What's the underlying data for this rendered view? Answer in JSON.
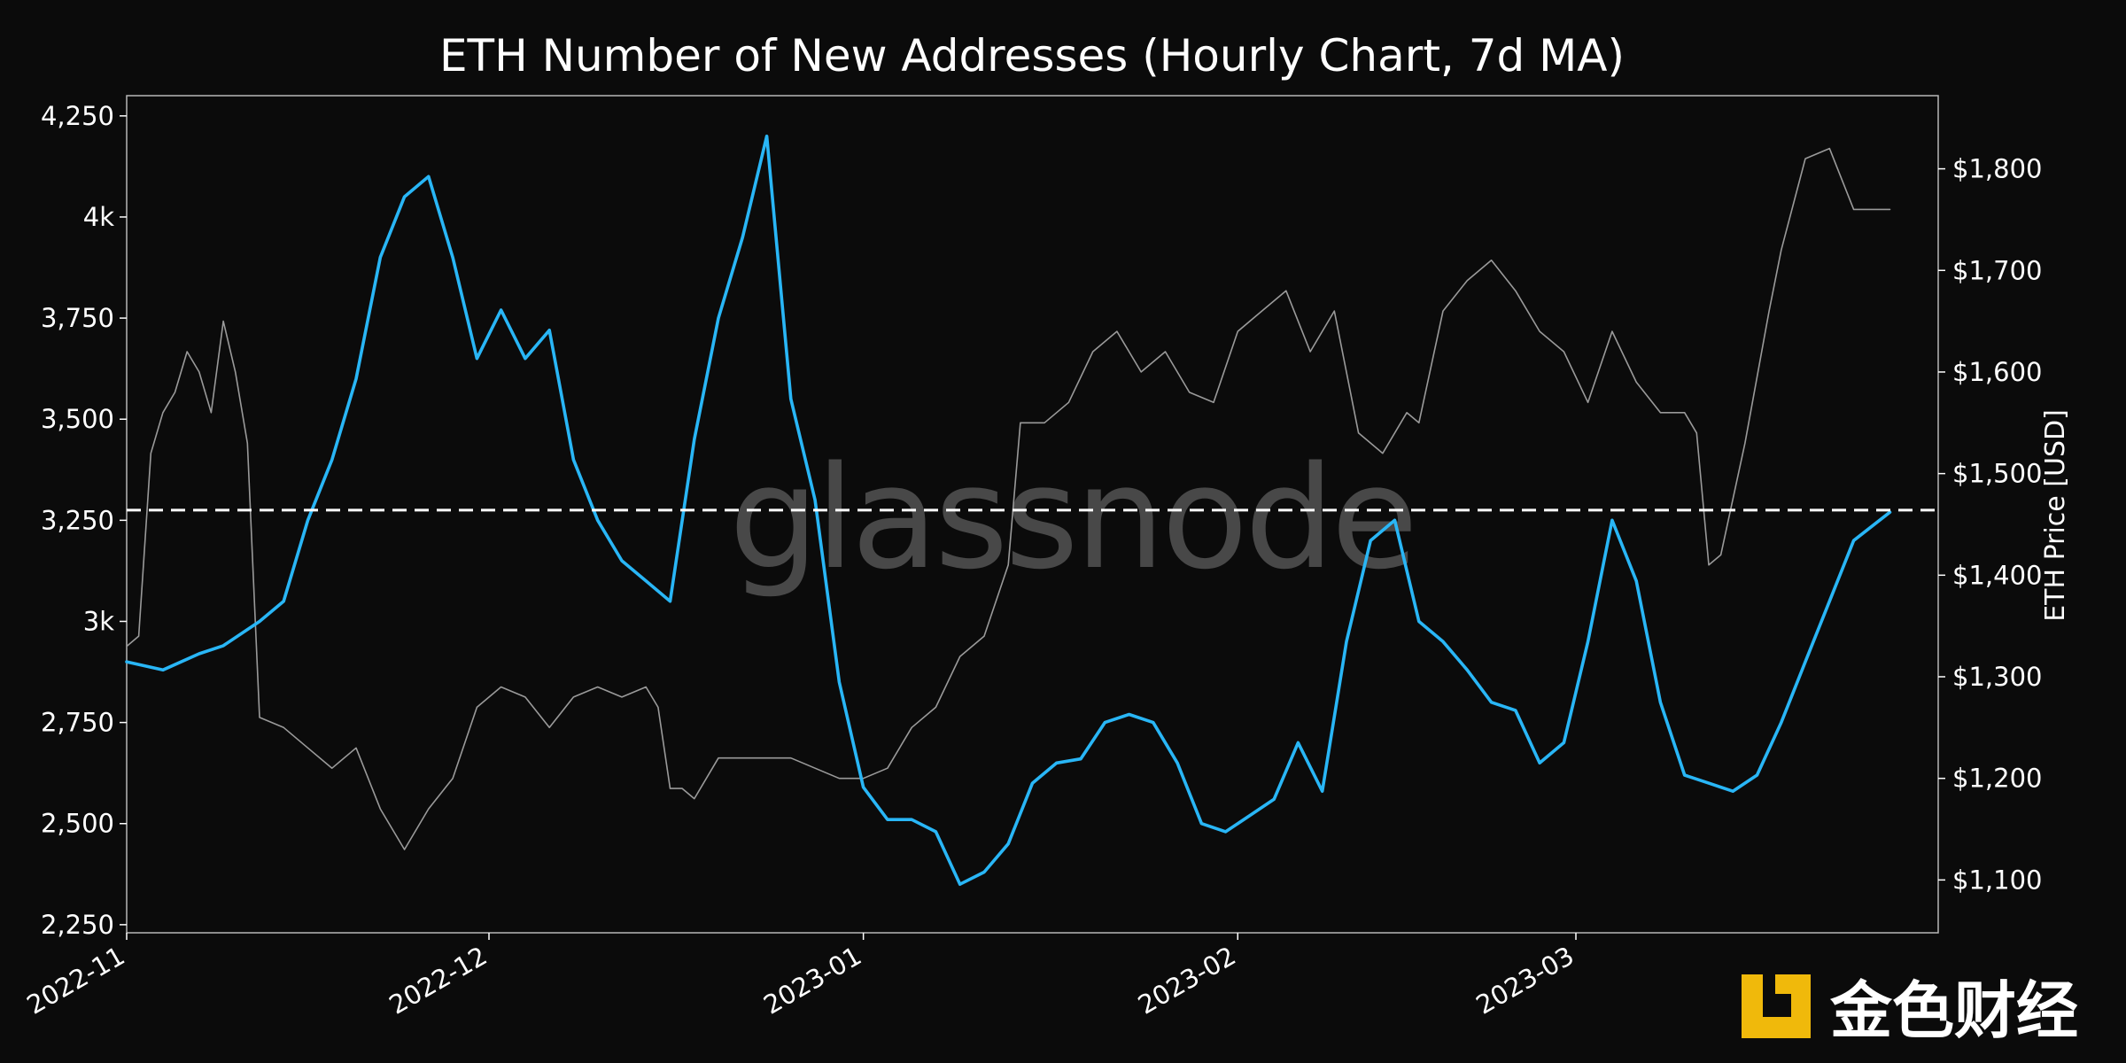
{
  "chart_data": {
    "type": "line",
    "title": "ETH Number of New Addresses (Hourly Chart, 7d MA)",
    "y_right_label": "ETH Price [USD]",
    "watermark": "glassnode",
    "brand": "金色财经",
    "x_ticks": [
      "2022-11",
      "2022-12",
      "2023-01",
      "2023-02",
      "2023-03"
    ],
    "y_left_ticks": [
      "2,250",
      "2,500",
      "2,750",
      "3k",
      "3,250",
      "3,500",
      "3,750",
      "4k",
      "4,250"
    ],
    "y_left_tick_values": [
      2250,
      2500,
      2750,
      3000,
      3250,
      3500,
      3750,
      4000,
      4250
    ],
    "y_right_ticks": [
      "$1,100",
      "$1,200",
      "$1,300",
      "$1,400",
      "$1,500",
      "$1,600",
      "$1,700",
      "$1,800"
    ],
    "y_right_tick_values": [
      1100,
      1200,
      1300,
      1400,
      1500,
      1600,
      1700,
      1800
    ],
    "ylim_left": [
      2230,
      4300
    ],
    "ylim_right": [
      1048,
      1872
    ],
    "xlim": [
      "2022-11-01",
      "2023-03-31"
    ],
    "reference_line": {
      "value": 3275,
      "axis": "left",
      "style": "dashed",
      "color": "#ffffff"
    },
    "series": [
      {
        "color": "#29b6f6",
        "axis": "left",
        "x": [
          "2022-11-01",
          "2022-11-04",
          "2022-11-07",
          "2022-11-09",
          "2022-11-12",
          "2022-11-14",
          "2022-11-16",
          "2022-11-18",
          "2022-11-20",
          "2022-11-22",
          "2022-11-24",
          "2022-11-26",
          "2022-11-28",
          "2022-11-30",
          "2022-12-02",
          "2022-12-04",
          "2022-12-06",
          "2022-12-08",
          "2022-12-10",
          "2022-12-12",
          "2022-12-14",
          "2022-12-16",
          "2022-12-18",
          "2022-12-20",
          "2022-12-22",
          "2022-12-24",
          "2022-12-26",
          "2022-12-28",
          "2022-12-30",
          "2023-01-01",
          "2023-01-03",
          "2023-01-05",
          "2023-01-07",
          "2023-01-09",
          "2023-01-11",
          "2023-01-13",
          "2023-01-15",
          "2023-01-17",
          "2023-01-19",
          "2023-01-21",
          "2023-01-23",
          "2023-01-25",
          "2023-01-27",
          "2023-01-29",
          "2023-01-31",
          "2023-02-02",
          "2023-02-04",
          "2023-02-06",
          "2023-02-08",
          "2023-02-10",
          "2023-02-12",
          "2023-02-14",
          "2023-02-16",
          "2023-02-18",
          "2023-02-20",
          "2023-02-22",
          "2023-02-24",
          "2023-02-26",
          "2023-02-28",
          "2023-03-02",
          "2023-03-04",
          "2023-03-06",
          "2023-03-08",
          "2023-03-10",
          "2023-03-12",
          "2023-03-14",
          "2023-03-16",
          "2023-03-18",
          "2023-03-20",
          "2023-03-22",
          "2023-03-24",
          "2023-03-27"
        ],
        "values": [
          2900,
          2880,
          2920,
          2940,
          3000,
          3050,
          3250,
          3400,
          3600,
          3900,
          4050,
          4100,
          3900,
          3650,
          3770,
          3650,
          3720,
          3400,
          3250,
          3150,
          3100,
          3050,
          3450,
          3750,
          3950,
          4200,
          3550,
          3300,
          2850,
          2590,
          2510,
          2510,
          2480,
          2350,
          2380,
          2450,
          2600,
          2650,
          2660,
          2750,
          2770,
          2750,
          2650,
          2500,
          2480,
          2520,
          2560,
          2700,
          2580,
          2950,
          3200,
          3250,
          3000,
          2950,
          2880,
          2800,
          2780,
          2650,
          2700,
          2950,
          3250,
          3100,
          2800,
          2620,
          2600,
          2580,
          2620,
          2750,
          2900,
          3050,
          3200,
          3270
        ]
      },
      {
        "color": "#9a9a9a",
        "axis": "right",
        "x": [
          "2022-11-01",
          "2022-11-02",
          "2022-11-03",
          "2022-11-04",
          "2022-11-05",
          "2022-11-06",
          "2022-11-07",
          "2022-11-08",
          "2022-11-09",
          "2022-11-10",
          "2022-11-11",
          "2022-11-12",
          "2022-11-14",
          "2022-11-16",
          "2022-11-18",
          "2022-11-20",
          "2022-11-22",
          "2022-11-24",
          "2022-11-26",
          "2022-11-28",
          "2022-11-30",
          "2022-12-02",
          "2022-12-04",
          "2022-12-06",
          "2022-12-08",
          "2022-12-10",
          "2022-12-12",
          "2022-12-14",
          "2022-12-15",
          "2022-12-16",
          "2022-12-17",
          "2022-12-18",
          "2022-12-20",
          "2022-12-22",
          "2022-12-24",
          "2022-12-26",
          "2022-12-28",
          "2022-12-30",
          "2023-01-01",
          "2023-01-03",
          "2023-01-05",
          "2023-01-07",
          "2023-01-09",
          "2023-01-11",
          "2023-01-13",
          "2023-01-14",
          "2023-01-16",
          "2023-01-18",
          "2023-01-20",
          "2023-01-22",
          "2023-01-24",
          "2023-01-26",
          "2023-01-28",
          "2023-01-30",
          "2023-02-01",
          "2023-02-03",
          "2023-02-05",
          "2023-02-07",
          "2023-02-09",
          "2023-02-11",
          "2023-02-13",
          "2023-02-15",
          "2023-02-16",
          "2023-02-18",
          "2023-02-20",
          "2023-02-22",
          "2023-02-24",
          "2023-02-26",
          "2023-02-28",
          "2023-03-02",
          "2023-03-04",
          "2023-03-06",
          "2023-03-08",
          "2023-03-10",
          "2023-03-11",
          "2023-03-12",
          "2023-03-13",
          "2023-03-15",
          "2023-03-17",
          "2023-03-18",
          "2023-03-20",
          "2023-03-22",
          "2023-03-24",
          "2023-03-27"
        ],
        "values": [
          1330,
          1340,
          1520,
          1560,
          1580,
          1620,
          1600,
          1560,
          1650,
          1600,
          1530,
          1260,
          1250,
          1230,
          1210,
          1230,
          1170,
          1130,
          1170,
          1200,
          1270,
          1290,
          1280,
          1250,
          1280,
          1290,
          1280,
          1290,
          1270,
          1190,
          1190,
          1180,
          1220,
          1220,
          1220,
          1220,
          1210,
          1200,
          1200,
          1210,
          1250,
          1270,
          1320,
          1340,
          1410,
          1550,
          1550,
          1570,
          1620,
          1640,
          1600,
          1620,
          1580,
          1570,
          1640,
          1660,
          1680,
          1620,
          1660,
          1540,
          1520,
          1560,
          1550,
          1660,
          1690,
          1710,
          1680,
          1640,
          1620,
          1570,
          1640,
          1590,
          1560,
          1560,
          1540,
          1410,
          1420,
          1530,
          1660,
          1720,
          1810,
          1820,
          1760,
          1760
        ]
      }
    ]
  }
}
